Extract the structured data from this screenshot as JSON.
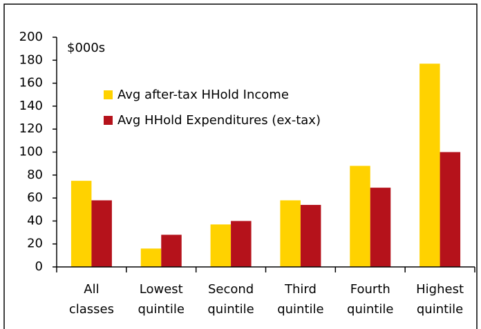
{
  "chart_data": {
    "type": "bar",
    "annotation": "$000s",
    "categories": [
      "All classes",
      "Lowest quintile",
      "Second quintile",
      "Third quintile",
      "Fourth quintile",
      "Highest quintile"
    ],
    "series": [
      {
        "name": "Avg after-tax HHold Income",
        "color": "#FFD200",
        "values": [
          75,
          16,
          37,
          58,
          88,
          177
        ]
      },
      {
        "name": "Avg HHold Expenditures (ex-tax)",
        "color": "#B5121B",
        "values": [
          58,
          28,
          40,
          54,
          69,
          100
        ]
      }
    ],
    "ylim": [
      0,
      200
    ],
    "yticks": [
      0,
      20,
      40,
      60,
      80,
      100,
      120,
      140,
      160,
      180,
      200
    ],
    "grid": false
  }
}
